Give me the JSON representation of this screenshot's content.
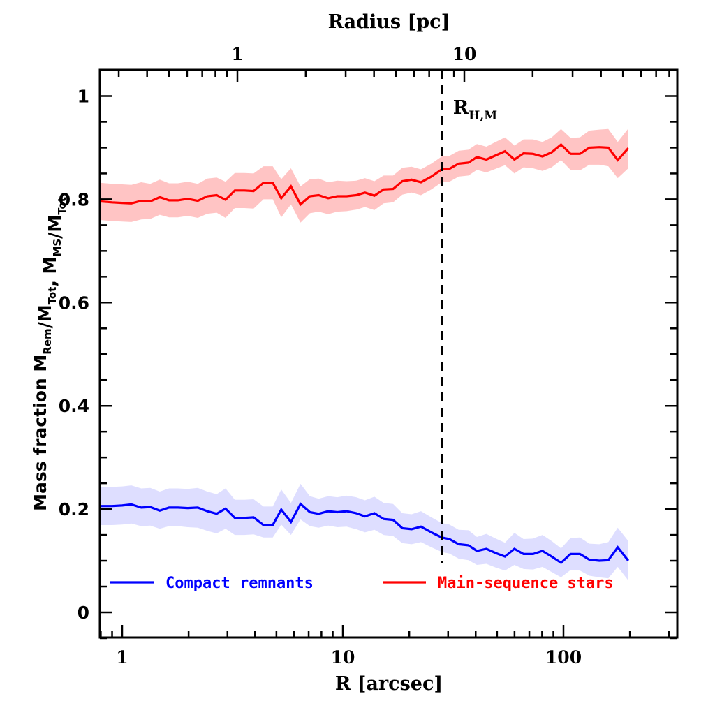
{
  "chart_data": {
    "type": "line",
    "title": "",
    "xlabel": "R [arcsec]",
    "xlabel_top": "Radius [pc]",
    "ylabel": {
      "prefix": "Mass fraction",
      "parts": [
        {
          "text": "M",
          "sub": "Rem"
        },
        {
          "text": "/M",
          "sub": "Tot"
        },
        {
          "text": ", M",
          "sub": "MS"
        },
        {
          "text": "/M",
          "sub": "Tot"
        }
      ]
    },
    "xscale": "log",
    "xlim": [
      0.79,
      333
    ],
    "ylim": [
      -0.05,
      1.05
    ],
    "x_major_ticks": [
      1,
      10,
      100
    ],
    "x_tick_labels": [
      "1",
      "10",
      "100"
    ],
    "x_top_scale_pc_per_arcsec": 0.31,
    "x_top_major_ticks": [
      1,
      10
    ],
    "x_top_tick_labels": [
      "1",
      "10"
    ],
    "y_major_ticks": [
      0,
      0.2,
      0.4,
      0.6,
      0.8,
      1
    ],
    "y_tick_labels": [
      "0",
      "0.2",
      "0.4",
      "0.6",
      "0.8",
      "1"
    ],
    "y_minor_step": 0.05,
    "grid": false,
    "vline": {
      "x": 28.1,
      "label": "R",
      "label_sub": "H,M",
      "style": "dashed"
    },
    "legend": {
      "placement": "bottom",
      "entries": [
        "Compact remnants",
        "Main-sequence stars"
      ]
    },
    "series": [
      {
        "name": "Compact remnants",
        "color": "#0000ff",
        "band_color": "#dedeff",
        "x": [
          0.79,
          0.9,
          1.0,
          1.1,
          1.22,
          1.34,
          1.48,
          1.63,
          1.79,
          1.98,
          2.2,
          2.43,
          2.68,
          2.94,
          3.24,
          3.58,
          3.94,
          4.37,
          4.81,
          5.26,
          5.82,
          6.43,
          7.09,
          7.77,
          8.58,
          9.44,
          10.4,
          11.5,
          12.6,
          13.9,
          15.3,
          16.9,
          18.6,
          20.5,
          22.6,
          25.2,
          28.1,
          30.4,
          33.5,
          37.1,
          40.5,
          44.7,
          49.3,
          54.3,
          59.9,
          65.9,
          72.8,
          80.3,
          88.4,
          97.5,
          107.6,
          118.7,
          131.0,
          145.3,
          159.6,
          176.1,
          196.7
        ],
        "y": [
          0.206,
          0.206,
          0.207,
          0.209,
          0.203,
          0.204,
          0.197,
          0.203,
          0.203,
          0.202,
          0.203,
          0.196,
          0.191,
          0.201,
          0.183,
          0.183,
          0.184,
          0.169,
          0.169,
          0.199,
          0.175,
          0.21,
          0.194,
          0.191,
          0.196,
          0.194,
          0.196,
          0.192,
          0.186,
          0.192,
          0.181,
          0.179,
          0.163,
          0.161,
          0.166,
          0.155,
          0.145,
          0.142,
          0.132,
          0.13,
          0.119,
          0.123,
          0.115,
          0.108,
          0.123,
          0.113,
          0.113,
          0.119,
          0.108,
          0.096,
          0.113,
          0.113,
          0.102,
          0.1,
          0.101,
          0.126,
          0.1
        ],
        "lower": [
          0.169,
          0.169,
          0.17,
          0.172,
          0.167,
          0.168,
          0.162,
          0.167,
          0.167,
          0.165,
          0.164,
          0.158,
          0.153,
          0.162,
          0.15,
          0.15,
          0.151,
          0.145,
          0.145,
          0.17,
          0.15,
          0.18,
          0.167,
          0.164,
          0.168,
          0.165,
          0.166,
          0.161,
          0.155,
          0.16,
          0.15,
          0.148,
          0.134,
          0.132,
          0.136,
          0.126,
          0.117,
          0.114,
          0.104,
          0.101,
          0.092,
          0.094,
          0.087,
          0.081,
          0.092,
          0.084,
          0.083,
          0.088,
          0.078,
          0.068,
          0.082,
          0.081,
          0.071,
          0.068,
          0.066,
          0.088,
          0.062
        ],
        "upper": [
          0.243,
          0.243,
          0.244,
          0.246,
          0.24,
          0.241,
          0.234,
          0.24,
          0.24,
          0.239,
          0.241,
          0.234,
          0.229,
          0.24,
          0.218,
          0.218,
          0.219,
          0.205,
          0.205,
          0.238,
          0.212,
          0.249,
          0.225,
          0.22,
          0.225,
          0.223,
          0.226,
          0.223,
          0.217,
          0.224,
          0.212,
          0.21,
          0.192,
          0.19,
          0.196,
          0.184,
          0.173,
          0.17,
          0.16,
          0.159,
          0.146,
          0.152,
          0.143,
          0.135,
          0.154,
          0.142,
          0.143,
          0.15,
          0.138,
          0.124,
          0.144,
          0.145,
          0.133,
          0.132,
          0.136,
          0.164,
          0.138
        ]
      },
      {
        "name": "Main-sequence stars",
        "color": "#ff0000",
        "band_color": "#ffc4c4",
        "x": [
          0.79,
          0.9,
          1.0,
          1.1,
          1.22,
          1.34,
          1.48,
          1.63,
          1.79,
          1.98,
          2.2,
          2.43,
          2.68,
          2.94,
          3.24,
          3.58,
          3.94,
          4.37,
          4.81,
          5.26,
          5.82,
          6.43,
          7.09,
          7.77,
          8.58,
          9.44,
          10.4,
          11.5,
          12.6,
          13.9,
          15.3,
          16.9,
          18.6,
          20.5,
          22.6,
          25.2,
          28.1,
          30.4,
          33.5,
          37.1,
          40.5,
          44.7,
          49.3,
          54.3,
          59.9,
          65.9,
          72.8,
          80.3,
          88.4,
          97.5,
          107.6,
          118.7,
          131.0,
          145.3,
          159.6,
          176.1,
          196.7
        ],
        "y": [
          0.796,
          0.794,
          0.793,
          0.792,
          0.797,
          0.796,
          0.804,
          0.798,
          0.798,
          0.801,
          0.797,
          0.806,
          0.808,
          0.799,
          0.817,
          0.817,
          0.816,
          0.832,
          0.832,
          0.802,
          0.825,
          0.79,
          0.806,
          0.808,
          0.802,
          0.806,
          0.806,
          0.808,
          0.813,
          0.807,
          0.819,
          0.82,
          0.835,
          0.838,
          0.833,
          0.844,
          0.858,
          0.859,
          0.869,
          0.871,
          0.882,
          0.877,
          0.885,
          0.893,
          0.877,
          0.889,
          0.888,
          0.883,
          0.891,
          0.906,
          0.888,
          0.888,
          0.9,
          0.901,
          0.9,
          0.876,
          0.899
        ],
        "lower": [
          0.76,
          0.758,
          0.757,
          0.756,
          0.761,
          0.762,
          0.77,
          0.765,
          0.765,
          0.768,
          0.764,
          0.772,
          0.774,
          0.764,
          0.783,
          0.783,
          0.782,
          0.8,
          0.8,
          0.765,
          0.79,
          0.755,
          0.773,
          0.776,
          0.771,
          0.776,
          0.777,
          0.78,
          0.785,
          0.779,
          0.792,
          0.794,
          0.809,
          0.813,
          0.808,
          0.819,
          0.833,
          0.834,
          0.844,
          0.846,
          0.857,
          0.852,
          0.859,
          0.866,
          0.85,
          0.862,
          0.86,
          0.855,
          0.862,
          0.876,
          0.857,
          0.856,
          0.867,
          0.867,
          0.864,
          0.841,
          0.86
        ],
        "upper": [
          0.832,
          0.83,
          0.829,
          0.828,
          0.833,
          0.83,
          0.838,
          0.831,
          0.831,
          0.834,
          0.83,
          0.84,
          0.842,
          0.834,
          0.851,
          0.851,
          0.85,
          0.864,
          0.864,
          0.839,
          0.86,
          0.825,
          0.839,
          0.84,
          0.833,
          0.836,
          0.835,
          0.836,
          0.841,
          0.835,
          0.846,
          0.846,
          0.861,
          0.863,
          0.858,
          0.869,
          0.883,
          0.884,
          0.894,
          0.896,
          0.907,
          0.902,
          0.911,
          0.92,
          0.904,
          0.916,
          0.916,
          0.911,
          0.92,
          0.936,
          0.919,
          0.92,
          0.933,
          0.935,
          0.936,
          0.911,
          0.937
        ]
      }
    ]
  }
}
